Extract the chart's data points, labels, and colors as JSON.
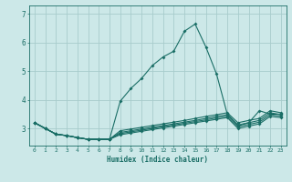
{
  "xlabel": "Humidex (Indice chaleur)",
  "bg_color": "#cce8e8",
  "grid_color": "#a8cccc",
  "line_color": "#1a6e66",
  "xlim": [
    -0.5,
    23.5
  ],
  "ylim": [
    2.4,
    7.3
  ],
  "yticks": [
    3,
    4,
    5,
    6,
    7
  ],
  "xticks": [
    0,
    1,
    2,
    3,
    4,
    5,
    6,
    7,
    8,
    9,
    10,
    11,
    12,
    13,
    14,
    15,
    16,
    17,
    18,
    19,
    20,
    21,
    22,
    23
  ],
  "lines": [
    [
      3.2,
      3.0,
      2.8,
      2.75,
      2.68,
      2.62,
      2.62,
      2.62,
      3.95,
      4.4,
      4.75,
      5.2,
      5.5,
      5.7,
      6.4,
      6.65,
      5.85,
      4.9,
      3.5,
      3.1,
      3.2,
      3.62,
      3.5,
      3.5
    ],
    [
      3.2,
      3.0,
      2.8,
      2.75,
      2.68,
      2.62,
      2.62,
      2.62,
      2.92,
      2.98,
      3.04,
      3.1,
      3.16,
      3.22,
      3.28,
      3.35,
      3.42,
      3.48,
      3.55,
      3.2,
      3.28,
      3.35,
      3.62,
      3.55
    ],
    [
      3.2,
      3.0,
      2.8,
      2.75,
      2.68,
      2.62,
      2.62,
      2.62,
      2.86,
      2.92,
      2.98,
      3.04,
      3.1,
      3.16,
      3.22,
      3.28,
      3.35,
      3.42,
      3.48,
      3.12,
      3.2,
      3.28,
      3.55,
      3.48
    ],
    [
      3.2,
      3.0,
      2.8,
      2.75,
      2.68,
      2.62,
      2.62,
      2.62,
      2.82,
      2.88,
      2.94,
      3.0,
      3.06,
      3.12,
      3.18,
      3.24,
      3.3,
      3.37,
      3.43,
      3.06,
      3.14,
      3.22,
      3.48,
      3.43
    ],
    [
      3.2,
      3.0,
      2.8,
      2.75,
      2.68,
      2.62,
      2.62,
      2.62,
      2.78,
      2.84,
      2.9,
      2.96,
      3.02,
      3.08,
      3.14,
      3.2,
      3.26,
      3.32,
      3.38,
      3.0,
      3.08,
      3.16,
      3.42,
      3.38
    ]
  ]
}
